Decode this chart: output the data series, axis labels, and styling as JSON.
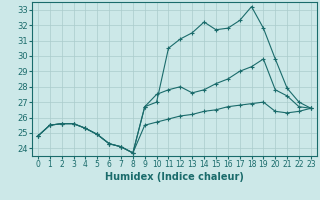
{
  "title": "",
  "xlabel": "Humidex (Indice chaleur)",
  "xlim": [
    -0.5,
    23.5
  ],
  "ylim": [
    23.5,
    33.5
  ],
  "yticks": [
    24,
    25,
    26,
    27,
    28,
    29,
    30,
    31,
    32,
    33
  ],
  "xticks": [
    0,
    1,
    2,
    3,
    4,
    5,
    6,
    7,
    8,
    9,
    10,
    11,
    12,
    13,
    14,
    15,
    16,
    17,
    18,
    19,
    20,
    21,
    22,
    23
  ],
  "bg_color": "#cce8e8",
  "grid_color": "#aacccc",
  "line_color": "#1a6b6b",
  "line1": [
    24.8,
    25.5,
    25.6,
    25.6,
    25.3,
    24.9,
    24.3,
    24.1,
    23.7,
    26.7,
    27.0,
    30.5,
    31.1,
    31.5,
    32.2,
    31.7,
    31.8,
    32.3,
    33.2,
    31.8,
    29.8,
    27.9,
    27.0,
    26.6
  ],
  "line2": [
    24.8,
    25.5,
    25.6,
    25.6,
    25.3,
    24.9,
    24.3,
    24.1,
    23.7,
    26.7,
    27.5,
    27.8,
    28.0,
    27.6,
    27.8,
    28.2,
    28.5,
    29.0,
    29.3,
    29.8,
    27.8,
    27.4,
    26.7,
    26.6
  ],
  "line3": [
    24.8,
    25.5,
    25.6,
    25.6,
    25.3,
    24.9,
    24.3,
    24.1,
    23.7,
    25.5,
    25.7,
    25.9,
    26.1,
    26.2,
    26.4,
    26.5,
    26.7,
    26.8,
    26.9,
    27.0,
    26.4,
    26.3,
    26.4,
    26.6
  ],
  "marker": "+"
}
